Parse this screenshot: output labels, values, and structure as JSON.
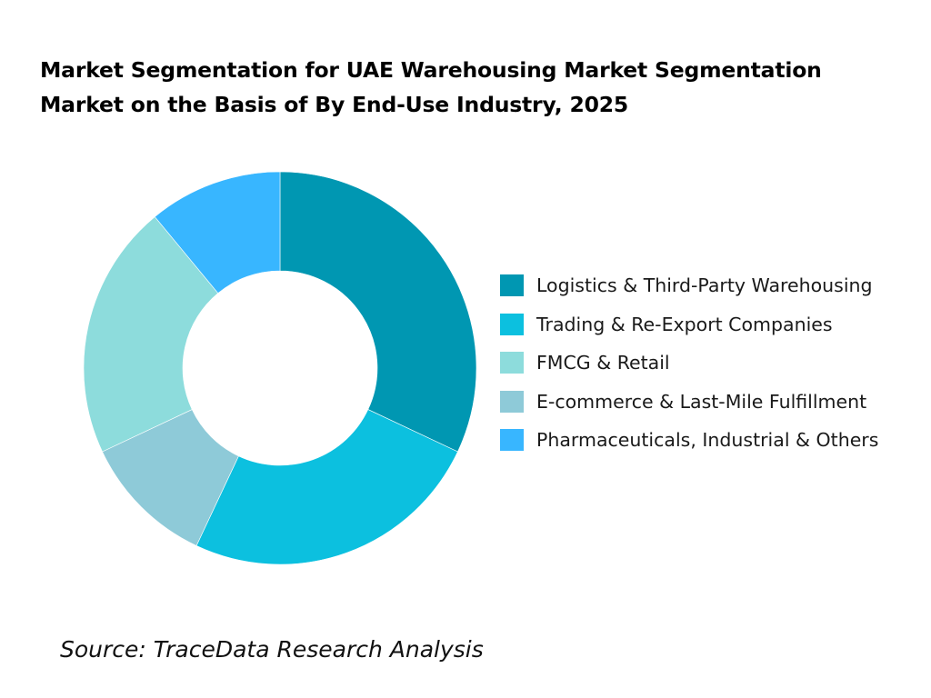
{
  "title_lines": [
    "Market Segmentation for UAE Warehousing Market Segmentation",
    "Market on the Basis of By End-Use Industry, 2025"
  ],
  "source": "Source: TraceData Research Analysis",
  "chart_data": {
    "type": "pie",
    "donut": true,
    "title": "Market Segmentation for UAE Warehousing Market Segmentation Market on the Basis of By End-Use Industry, 2025",
    "legend_position": "right",
    "categories": [
      "Logistics & Third-Party Warehousing",
      "Trading & Re-Export Companies",
      "FMCG & Retail",
      "E-commerce & Last-Mile Fulfillment",
      "Pharmaceuticals, Industrial & Others"
    ],
    "values": [
      32,
      25,
      21,
      11,
      11
    ],
    "colors": [
      "#0097b2",
      "#0cc0df",
      "#8ddcdc",
      "#8ecad8",
      "#38b6ff"
    ],
    "slice_order": [
      "Logistics & Third-Party Warehousing",
      "Trading & Re-Export Companies",
      "E-commerce & Last-Mile Fulfillment",
      "FMCG & Retail",
      "Pharmaceuticals, Industrial & Others"
    ]
  }
}
